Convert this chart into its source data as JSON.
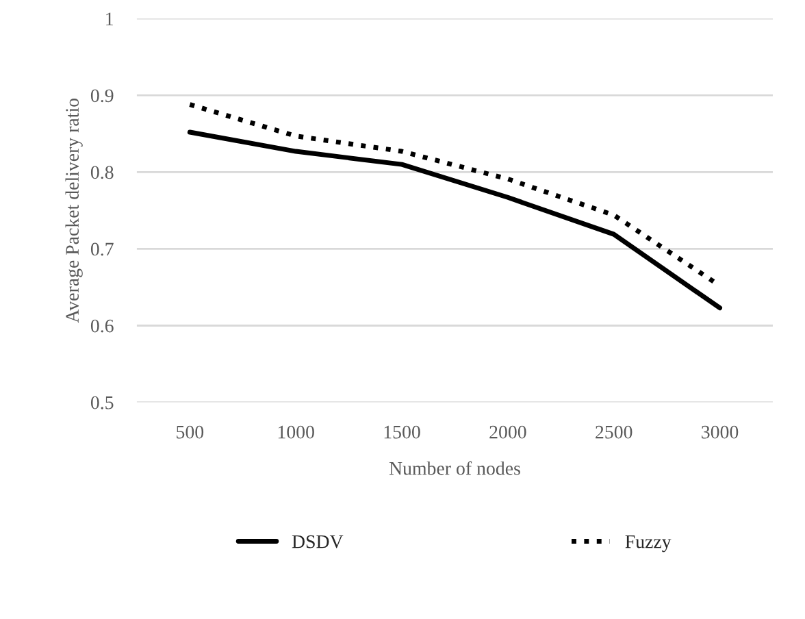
{
  "chart_data": {
    "type": "line",
    "xlabel": "Number of nodes",
    "ylabel": "Average Packet delivery ratio",
    "categories": [
      "500",
      "1000",
      "1500",
      "2000",
      "2500",
      "3000"
    ],
    "series": [
      {
        "name": "DSDV",
        "color": "#000000",
        "line_style": "solid",
        "values": [
          0.852,
          0.827,
          0.81,
          0.767,
          0.719,
          0.623
        ]
      },
      {
        "name": "Fuzzy",
        "color": "#000000",
        "line_style": "dotted",
        "values": [
          0.888,
          0.847,
          0.827,
          0.791,
          0.744,
          0.652
        ]
      }
    ],
    "ylim": [
      0.5,
      1
    ],
    "yticks": [
      0.5,
      0.6,
      0.7,
      0.8,
      0.9,
      1
    ],
    "grid": "y",
    "legend": "bottom",
    "marker": "none"
  }
}
